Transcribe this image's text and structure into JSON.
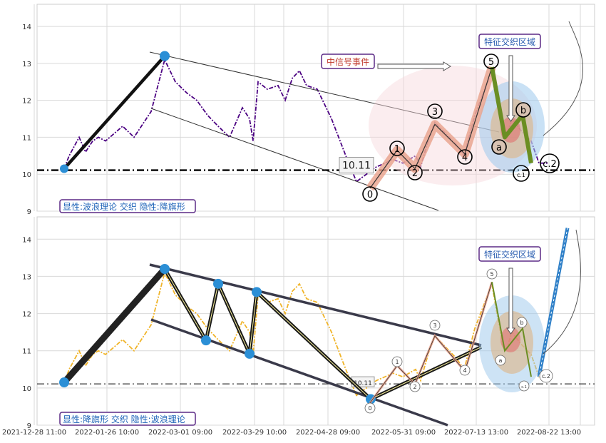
{
  "chart_data": [
    {
      "type": "line",
      "panel": "top",
      "ylim": [
        9,
        14.6
      ],
      "yticks": [
        9,
        10,
        11,
        12,
        13,
        14
      ],
      "grid": true,
      "reference_line_value": 10.11,
      "reference_label": "10.11",
      "bottom_label": "显性:波浪理论 交织 隐性:降旗形",
      "event_label": "中信号事件",
      "zone_label": "特征交织区域",
      "wave_labels": [
        "0",
        "1",
        "2",
        "3",
        "4",
        "5",
        "a",
        "b",
        "c.1",
        "c.2"
      ],
      "colors": {
        "price": "#4b0082",
        "zone": "#2a5db0",
        "event": "#c0392b",
        "accent": "#6b8e23",
        "fill": "#e8a08a"
      },
      "series": [
        {
          "values": [
            10.15,
            10.5,
            11.0,
            10.6,
            10.9,
            11.0,
            10.9,
            11.1,
            11.3,
            11.0,
            11.7,
            13.1,
            12.5,
            12.2,
            12.0,
            11.6,
            11.3,
            11.0,
            11.8,
            11.5,
            10.9,
            12.5,
            12.3,
            12.4,
            12.0,
            12.6,
            12.8,
            12.4,
            12.3,
            11.5,
            10.5,
            9.8,
            10.0,
            10.2,
            10.3,
            10.4,
            10.3,
            10.5,
            10.2,
            11.0,
            11.4,
            11.1,
            10.8,
            10.5,
            11.6,
            12.8,
            12.0,
            11.2,
            11.0,
            11.5,
            11.2,
            10.9,
            10.3,
            10.3
          ]
        }
      ],
      "wave_path": [
        9.62,
        10.65,
        10.15,
        11.35,
        10.55,
        12.9
      ],
      "wave_correction": [
        12.9,
        11.0,
        11.6,
        10.3
      ]
    },
    {
      "type": "line",
      "panel": "bottom",
      "ylim": [
        9,
        14.6
      ],
      "yticks": [
        9,
        10,
        11,
        12,
        13,
        14
      ],
      "grid": true,
      "reference_line_value": 10.11,
      "reference_label": "10.11",
      "bottom_label": "显性:降旗形 交织 隐性:波浪理论",
      "zone_label": "特征交织区域",
      "wave_labels": [
        "0",
        "1",
        "2",
        "3",
        "4",
        "5",
        "a",
        "b",
        "c.1",
        "c.2"
      ],
      "colors": {
        "price": "#f0b429",
        "pattern": "#2b2b2b",
        "pattern_fill": "#f7ef9a",
        "zone": "#2a5db0",
        "projection": "#2f80c8"
      },
      "series": [
        {
          "values": [
            10.15,
            10.5,
            11.0,
            10.6,
            10.9,
            11.0,
            10.9,
            11.1,
            11.3,
            11.0,
            11.7,
            13.1,
            12.5,
            12.2,
            12.0,
            11.6,
            11.3,
            11.0,
            11.8,
            11.5,
            10.9,
            12.5,
            12.3,
            12.4,
            12.0,
            12.6,
            12.8,
            12.4,
            12.3,
            11.5,
            10.5,
            9.8,
            10.0,
            10.2,
            10.3,
            10.4,
            10.3,
            10.5,
            10.2,
            11.0,
            11.4,
            11.1,
            10.8,
            10.5,
            11.6,
            12.8,
            12.0,
            11.2,
            11.0,
            11.5,
            11.2,
            10.9,
            10.3,
            10.3
          ]
        }
      ],
      "flag_pivots": [
        10.15,
        13.2,
        11.28,
        12.8,
        10.92,
        12.58,
        9.7,
        11.1
      ],
      "projection_target": 14.3
    }
  ],
  "x_axis": {
    "labels": [
      "2021-12-28 11:00",
      "2022-01-26 10:00",
      "2022-03-01 09:00",
      "2022-03-29 10:00",
      "2022-04-28 09:00",
      "2022-05-31 09:00",
      "2022-07-13 13:00",
      "2022-08-22 13:00"
    ]
  }
}
